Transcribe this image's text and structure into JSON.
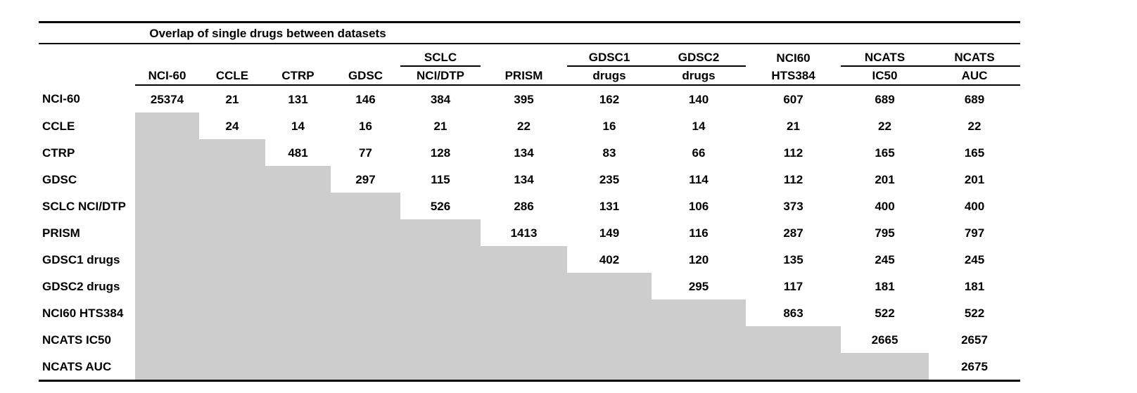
{
  "table": {
    "title": "Overlap of single drugs between datasets",
    "columns": [
      {
        "top": "",
        "bottom": "NCI-60",
        "group_underline": false
      },
      {
        "top": "",
        "bottom": "CCLE",
        "group_underline": false
      },
      {
        "top": "",
        "bottom": "CTRP",
        "group_underline": false
      },
      {
        "top": "",
        "bottom": "GDSC",
        "group_underline": false
      },
      {
        "top": "SCLC",
        "bottom": "NCI/DTP",
        "group_underline": true
      },
      {
        "top": "",
        "bottom": "PRISM",
        "group_underline": false
      },
      {
        "top": "GDSC1",
        "bottom": "drugs",
        "group_underline": true
      },
      {
        "top": "GDSC2",
        "bottom": "drugs",
        "group_underline": true
      },
      {
        "top": "NCI60",
        "bottom": "HTS384",
        "group_underline": false
      },
      {
        "top": "NCATS",
        "bottom": "IC50",
        "group_underline": true
      },
      {
        "top": "NCATS",
        "bottom": "AUC",
        "group_underline": true
      }
    ],
    "rows": [
      {
        "label": "NCI-60",
        "values": [
          25374,
          21,
          131,
          146,
          384,
          395,
          162,
          140,
          607,
          689,
          689
        ]
      },
      {
        "label": "CCLE",
        "values": [
          null,
          24,
          14,
          16,
          21,
          22,
          16,
          14,
          21,
          22,
          22
        ]
      },
      {
        "label": "CTRP",
        "values": [
          null,
          null,
          481,
          77,
          128,
          134,
          83,
          66,
          112,
          165,
          165
        ]
      },
      {
        "label": "GDSC",
        "values": [
          null,
          null,
          null,
          297,
          115,
          134,
          235,
          114,
          112,
          201,
          201
        ]
      },
      {
        "label": "SCLC NCI/DTP",
        "values": [
          null,
          null,
          null,
          null,
          526,
          286,
          131,
          106,
          373,
          400,
          400
        ]
      },
      {
        "label": "PRISM",
        "values": [
          null,
          null,
          null,
          null,
          null,
          1413,
          149,
          116,
          287,
          795,
          797
        ]
      },
      {
        "label": "GDSC1 drugs",
        "values": [
          null,
          null,
          null,
          null,
          null,
          null,
          402,
          120,
          135,
          245,
          245
        ]
      },
      {
        "label": "GDSC2 drugs",
        "values": [
          null,
          null,
          null,
          null,
          null,
          null,
          null,
          295,
          117,
          181,
          181
        ]
      },
      {
        "label": "NCI60 HTS384",
        "values": [
          null,
          null,
          null,
          null,
          null,
          null,
          null,
          null,
          863,
          522,
          522
        ]
      },
      {
        "label": "NCATS IC50",
        "values": [
          null,
          null,
          null,
          null,
          null,
          null,
          null,
          null,
          null,
          2665,
          2657
        ]
      },
      {
        "label": "NCATS AUC",
        "values": [
          null,
          null,
          null,
          null,
          null,
          null,
          null,
          null,
          null,
          null,
          2675
        ]
      }
    ],
    "colors": {
      "shaded_cell": "#cdcdcd",
      "line": "#000000",
      "text": "#000000"
    }
  }
}
